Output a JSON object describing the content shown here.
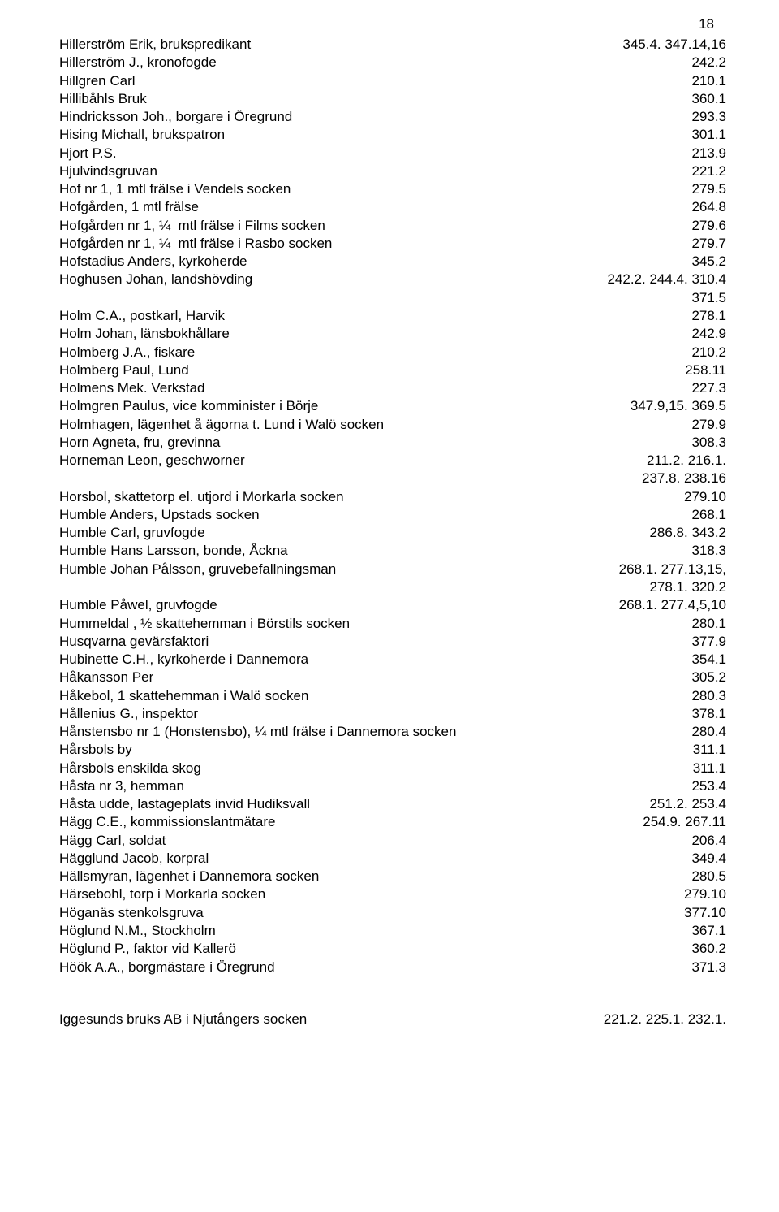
{
  "pageNumber": "18",
  "rows": [
    {
      "name": "Hillerström Erik, brukspredikant",
      "ref": "345.4. 347.14,16"
    },
    {
      "name": "Hillerström J., kronofogde",
      "ref": "242.2"
    },
    {
      "name": "Hillgren Carl",
      "ref": "210.1"
    },
    {
      "name": "Hillibåhls Bruk",
      "ref": "360.1"
    },
    {
      "name": "Hindricksson Joh., borgare i Öregrund",
      "ref": "293.3"
    },
    {
      "name": "Hising Michall, brukspatron",
      "ref": "301.1"
    },
    {
      "name": "Hjort P.S.",
      "ref": "213.9"
    },
    {
      "name": "Hjulvindsgruvan",
      "ref": "221.2"
    },
    {
      "name": "Hof nr 1, 1 mtl frälse i Vendels socken",
      "ref": "279.5"
    },
    {
      "name": "Hofgården, 1 mtl frälse",
      "ref": "264.8"
    },
    {
      "name": "Hofgården nr 1, ¼  mtl frälse i Films socken",
      "ref": "279.6"
    },
    {
      "name": "Hofgården nr 1, ¼  mtl frälse i Rasbo socken",
      "ref": "279.7"
    },
    {
      "name": "Hofstadius Anders, kyrkoherde",
      "ref": "345.2"
    },
    {
      "name": "Hoghusen Johan, landshövding",
      "ref": "242.2. 244.4. 310.4"
    },
    {
      "name": "",
      "ref": "371.5",
      "cont": true
    },
    {
      "name": "Holm C.A., postkarl, Harvik",
      "ref": "278.1"
    },
    {
      "name": "Holm Johan, länsbokhållare",
      "ref": "242.9"
    },
    {
      "name": "Holmberg J.A., fiskare",
      "ref": "210.2"
    },
    {
      "name": "Holmberg Paul, Lund",
      "ref": "258.11"
    },
    {
      "name": "Holmens Mek. Verkstad",
      "ref": "227.3"
    },
    {
      "name": "Holmgren Paulus, vice komminister i Börje",
      "ref": "347.9,15. 369.5"
    },
    {
      "name": "Holmhagen, lägenhet å ägorna t. Lund i Walö socken",
      "ref": "279.9"
    },
    {
      "name": "Horn Agneta, fru, grevinna",
      "ref": "308.3"
    },
    {
      "name": "Horneman Leon, geschworner",
      "ref": "211.2. 216.1."
    },
    {
      "name": "",
      "ref": "237.8. 238.16",
      "cont": true
    },
    {
      "name": "Horsbol, skattetorp el. utjord i Morkarla socken",
      "ref": "279.10"
    },
    {
      "name": "Humble Anders, Upstads socken",
      "ref": "268.1"
    },
    {
      "name": "Humble Carl, gruvfogde",
      "ref": "286.8. 343.2"
    },
    {
      "name": "Humble Hans Larsson, bonde, Åckna",
      "ref": "318.3"
    },
    {
      "name": "Humble Johan Pålsson, gruvebefallningsman",
      "ref": "268.1. 277.13,15,"
    },
    {
      "name": "",
      "ref": "278.1. 320.2",
      "cont": true
    },
    {
      "name": "Humble Påwel, gruvfogde",
      "ref": "268.1. 277.4,5,10"
    },
    {
      "name": "Hummeldal , ½ skattehemman i Börstils socken",
      "ref": "280.1"
    },
    {
      "name": "Husqvarna gevärsfaktori",
      "ref": "377.9"
    },
    {
      "name": "Hubinette C.H., kyrkoherde i Dannemora",
      "ref": "354.1"
    },
    {
      "name": "Håkansson Per",
      "ref": "305.2"
    },
    {
      "name": "Håkebol, 1 skattehemman i Walö socken",
      "ref": "280.3"
    },
    {
      "name": "Hållenius G., inspektor",
      "ref": "378.1"
    },
    {
      "name": "Hånstensbo nr 1 (Honstensbo), ¼ mtl frälse i Dannemora socken",
      "ref": "280.4"
    },
    {
      "name": "Hårsbols by",
      "ref": "311.1"
    },
    {
      "name": "Hårsbols enskilda skog",
      "ref": "311.1"
    },
    {
      "name": "Håsta nr 3, hemman",
      "ref": "253.4"
    },
    {
      "name": "Håsta udde, lastageplats invid Hudiksvall",
      "ref": "251.2. 253.4"
    },
    {
      "name": "Hägg C.E., kommissionslantmätare",
      "ref": " 254.9. 267.11"
    },
    {
      "name": "Hägg Carl, soldat",
      "ref": "206.4"
    },
    {
      "name": "Hägglund Jacob, korpral",
      "ref": "349.4"
    },
    {
      "name": "Hällsmyran, lägenhet i Dannemora socken",
      "ref": "280.5"
    },
    {
      "name": "Härsebohl, torp i Morkarla socken",
      "ref": "279.10"
    },
    {
      "name": "Höganäs stenkolsgruva",
      "ref": "377.10"
    },
    {
      "name": "Höglund N.M., Stockholm",
      "ref": "367.1"
    },
    {
      "name": "Höglund P., faktor vid Kallerö",
      "ref": "360.2"
    },
    {
      "name": "Höök A.A., borgmästare i Öregrund",
      "ref": "371.3"
    }
  ],
  "footer": {
    "name": "Iggesunds bruks AB i Njutångers socken",
    "ref": "221.2. 225.1. 232.1."
  },
  "refColumnLeft": 614
}
